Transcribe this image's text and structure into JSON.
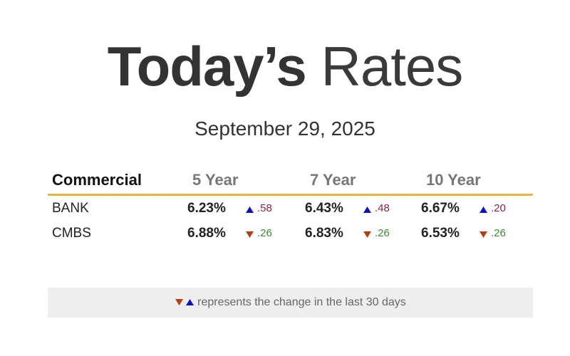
{
  "header": {
    "title_bold": "Today’s",
    "title_light": "Rates",
    "date": "September 29, 2025"
  },
  "table": {
    "columns": [
      "Commercial",
      "5 Year",
      "7 Year",
      "10 Year"
    ],
    "rows": [
      {
        "label": "BANK",
        "cells": [
          {
            "rate": "6.23%",
            "change": ".58",
            "direction": "up"
          },
          {
            "rate": "6.43%",
            "change": ".48",
            "direction": "up"
          },
          {
            "rate": "6.67%",
            "change": ".20",
            "direction": "up"
          }
        ]
      },
      {
        "label": "CMBS",
        "cells": [
          {
            "rate": "6.88%",
            "change": ".26",
            "direction": "down"
          },
          {
            "rate": "6.83%",
            "change": ".26",
            "direction": "down"
          },
          {
            "rate": "6.53%",
            "change": ".26",
            "direction": "down"
          }
        ]
      }
    ]
  },
  "footer": {
    "note": "represents the change in the last 30 days"
  }
}
